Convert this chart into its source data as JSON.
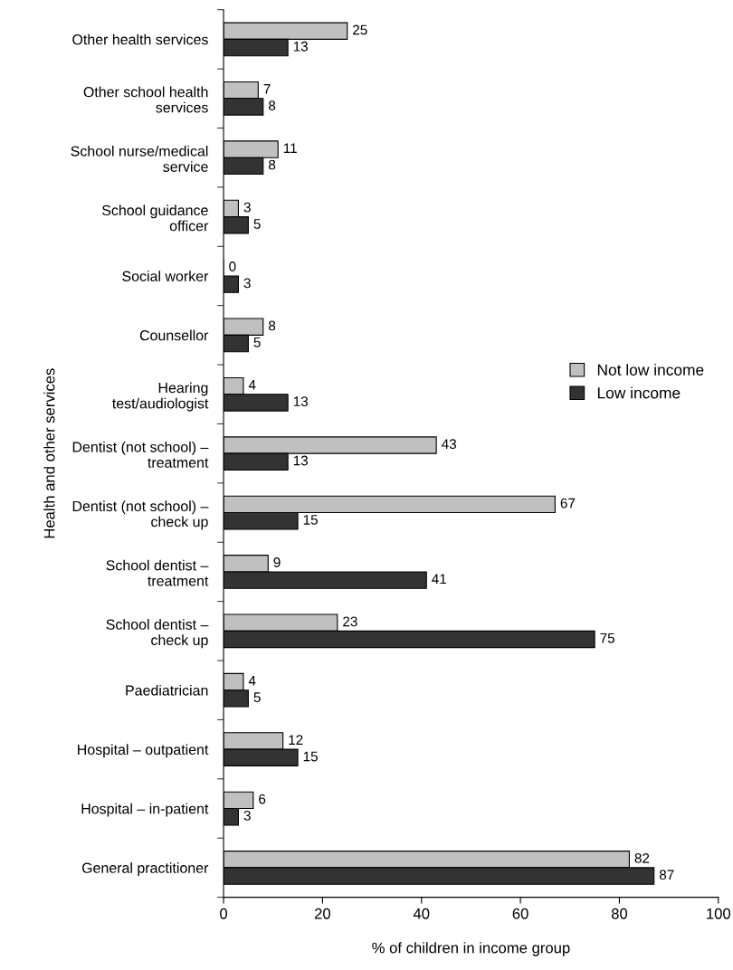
{
  "chart_data": {
    "type": "bar",
    "orientation": "horizontal",
    "ylabel": "Health and other services",
    "xlabel": "% of children in income group",
    "categories": [
      "Other health services",
      "Other school health\nservices",
      "School nurse/medical\nservice",
      "School guidance\nofficer",
      "Social worker",
      "Counsellor",
      "Hearing\ntest/audiologist",
      "Dentist (not school) –\ntreatment",
      "Dentist (not school) –\ncheck up",
      "School dentist –\ntreatment",
      "School dentist –\ncheck up",
      "Paediatrician",
      "Hospital – outpatient",
      "Hospital – in-patient",
      "General practitioner"
    ],
    "series": [
      {
        "name": "Not low income",
        "color": "#c0c0c0",
        "values": [
          25,
          7,
          11,
          3,
          0,
          8,
          4,
          43,
          67,
          9,
          23,
          4,
          12,
          6,
          82
        ]
      },
      {
        "name": "Low income",
        "color": "#333333",
        "values": [
          13,
          8,
          8,
          5,
          3,
          5,
          13,
          13,
          15,
          41,
          75,
          5,
          15,
          3,
          87
        ]
      }
    ],
    "xlim": [
      0,
      100
    ],
    "xticks": [
      0,
      20,
      40,
      60,
      80,
      100
    ],
    "data_labels": true,
    "legend": "right",
    "grid": false
  }
}
